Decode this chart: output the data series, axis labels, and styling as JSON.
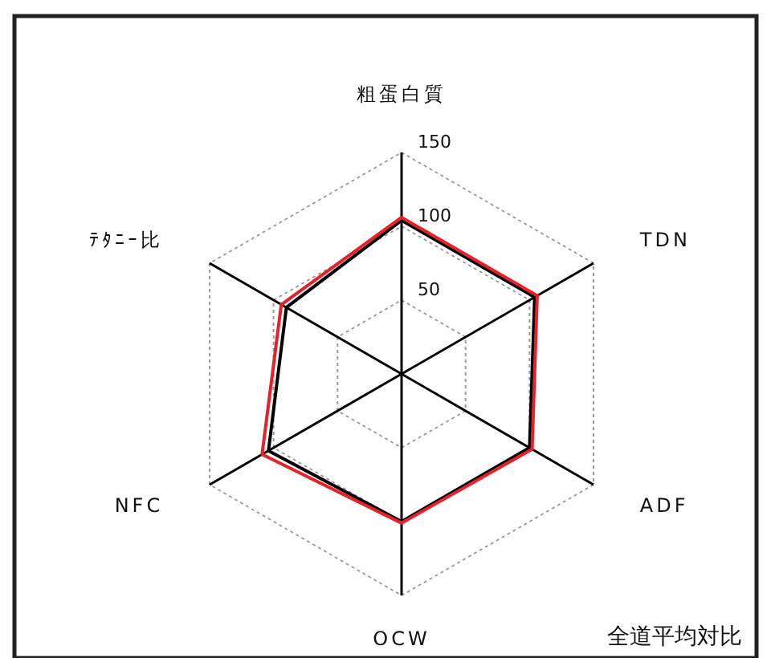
{
  "chart_data": {
    "type": "radar",
    "categories": [
      "粗蛋白質",
      "TDN",
      "ADF",
      "OCW",
      "NFC",
      "ﾃﾀﾆｰ比"
    ],
    "series": [
      {
        "color": "#000000",
        "values": [
          104,
          104,
          100,
          100,
          104,
          90
        ]
      },
      {
        "color": "#e8202a",
        "values": [
          106,
          106,
          102,
          101,
          109,
          94
        ]
      }
    ],
    "ylim": [
      0,
      150
    ],
    "yticks": [
      50,
      100,
      150
    ],
    "grid": true,
    "marker": "none",
    "annotations": [
      "全道平均対比"
    ]
  }
}
